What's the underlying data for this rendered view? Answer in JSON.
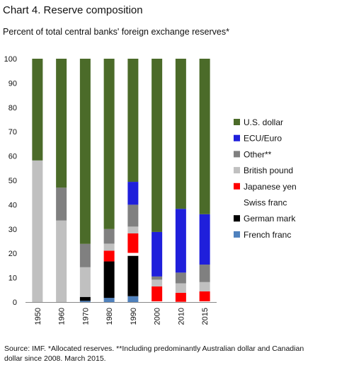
{
  "title": "Chart 4.  Reserve composition",
  "subtitle": "Percent of total central banks' foreign exchange reserves*",
  "source": "Source: IMF. *Allocated reserves. **Including predominantly Australian dollar and Canadian dollar since 2008. March 2015.",
  "chart_data": {
    "type": "bar",
    "stacked": true,
    "categories": [
      "1950",
      "1960",
      "1970",
      "1980",
      "1990",
      "2000",
      "2010",
      "2015"
    ],
    "ylim": [
      0,
      100
    ],
    "yticks": [
      0,
      10,
      20,
      30,
      40,
      50,
      60,
      70,
      80,
      90,
      100
    ],
    "grid": false,
    "legend_position": "right",
    "series": [
      {
        "name": "French franc",
        "color": "#4f81bd",
        "values": [
          0,
          0,
          0.5,
          1.7,
          2.4,
          0,
          0,
          0
        ]
      },
      {
        "name": "German mark",
        "color": "#000000",
        "values": [
          0,
          0,
          1.6,
          15.0,
          16.6,
          0,
          0,
          0
        ]
      },
      {
        "name": "Swiss franc",
        "color": "#ffffff",
        "values": [
          0,
          0,
          0,
          0,
          1.2,
          0.3,
          0.1,
          0.3
        ]
      },
      {
        "name": "Japanese yen",
        "color": "#ff0000",
        "values": [
          0,
          0,
          0,
          4.4,
          8.0,
          6.1,
          3.7,
          4.1
        ]
      },
      {
        "name": "British pound",
        "color": "#c0c0c0",
        "values": [
          58.2,
          33.5,
          12.2,
          2.9,
          2.8,
          2.8,
          3.9,
          3.8
        ]
      },
      {
        "name": "Other**",
        "color": "#808080",
        "values": [
          0,
          13.5,
          9.6,
          6.0,
          9.0,
          1.3,
          4.4,
          7.2
        ]
      },
      {
        "name": "ECU/Euro",
        "color": "#1f1fdb",
        "values": [
          0,
          0,
          0,
          0,
          9.4,
          18.3,
          26.2,
          20.7
        ]
      },
      {
        "name": "U.S. dollar",
        "color": "#4b6b29",
        "values": [
          41.8,
          53.0,
          76.1,
          70.0,
          50.6,
          71.2,
          61.7,
          63.9
        ]
      }
    ],
    "legend_order": [
      "U.S. dollar",
      "ECU/Euro",
      "Other**",
      "British pound",
      "Japanese yen",
      "Swiss franc",
      "German mark",
      "French franc"
    ]
  }
}
